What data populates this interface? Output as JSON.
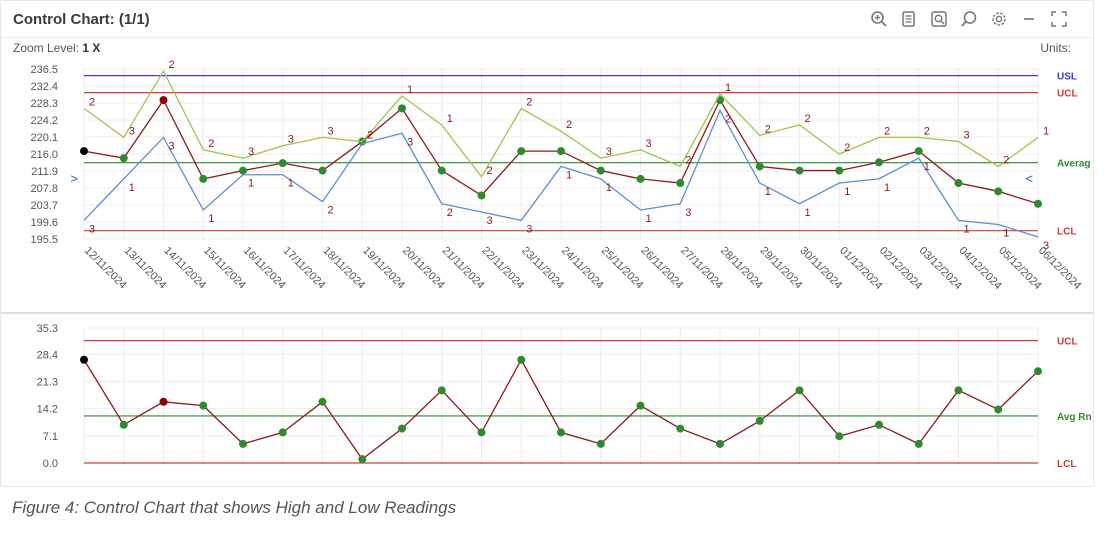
{
  "header": {
    "title": "Control Chart: (1/1)",
    "zoom_label": "Zoom Level:",
    "zoom_value": "1 X",
    "units_label": "Units:",
    "toolbar": [
      "zoom-in-icon",
      "report-icon",
      "zoom-region-icon",
      "search-icon",
      "settings-icon",
      "minimize-icon",
      "expand-icon"
    ]
  },
  "caption": "Figure 4: Control Chart that shows High and Low Readings",
  "chart_data": [
    {
      "type": "line",
      "name": "individuals",
      "categories": [
        "12/11/2024",
        "13/11/2024",
        "14/11/2024",
        "15/11/2024",
        "16/11/2024",
        "17/11/2024",
        "18/11/2024",
        "19/11/2024",
        "20/11/2024",
        "21/11/2024",
        "22/11/2024",
        "23/11/2024",
        "24/11/2024",
        "25/11/2024",
        "26/11/2024",
        "27/11/2024",
        "28/11/2024",
        "29/11/2024",
        "30/11/2024",
        "01/12/2024",
        "02/12/2024",
        "03/12/2024",
        "04/12/2024",
        "05/12/2024",
        "06/12/2024"
      ],
      "yticks": [
        "236.5",
        "232.4",
        "228.3",
        "224.2",
        "220.1",
        "216.0",
        "211.9",
        "207.8",
        "203.7",
        "199.6",
        "195.5"
      ],
      "ylim": [
        195.5,
        236.5
      ],
      "series": [
        {
          "color": "#8b1a1a",
          "values": [
            216.7,
            215.0,
            229.0,
            210.0,
            212.0,
            213.8,
            212.0,
            219.0,
            227.0,
            212.0,
            206.0,
            216.7,
            216.7,
            212.0,
            210.0,
            209.0,
            229.0,
            213.0,
            212.0,
            212.0,
            214.0,
            216.7,
            209.0,
            207.0,
            204.0
          ],
          "marker_colors": [
            "#000000",
            "#2f8a2f",
            "#8b0000",
            "#2f8a2f",
            "#2f8a2f",
            "#2f8a2f",
            "#2f8a2f",
            "#2f8a2f",
            "#2f8a2f",
            "#2f8a2f",
            "#2f8a2f",
            "#2f8a2f",
            "#2f8a2f",
            "#2f8a2f",
            "#2f8a2f",
            "#2f8a2f",
            "#2f8a2f",
            "#2f8a2f",
            "#2f8a2f",
            "#2f8a2f",
            "#2f8a2f",
            "#2f8a2f",
            "#2f8a2f",
            "#2f8a2f",
            "#2f8a2f"
          ]
        },
        {
          "color": "#9fc64a",
          "values": [
            227.0,
            220.0,
            236.0,
            217.0,
            215.0,
            218.0,
            220.0,
            219.0,
            230.0,
            223.0,
            210.5,
            227.0,
            221.5,
            215.0,
            217.0,
            213.0,
            230.5,
            220.5,
            223.0,
            216.0,
            220.0,
            220.0,
            219.0,
            213.0,
            220.0
          ]
        },
        {
          "color": "#5b8fd6",
          "values": [
            200.0,
            210.0,
            220.0,
            202.5,
            211.0,
            211.0,
            204.5,
            218.5,
            221.0,
            204.0,
            202.0,
            200.0,
            213.0,
            210.0,
            202.5,
            204.0,
            226.5,
            209.0,
            204.0,
            209.0,
            210.0,
            215.0,
            200.0,
            199.0,
            196.0
          ]
        }
      ],
      "point_labels": [
        {
          "i": 0,
          "top": "2",
          "bottom": "3"
        },
        {
          "i": 1,
          "top": "3",
          "bottom": "1"
        },
        {
          "i": 2,
          "top": "2",
          "bottom": "3"
        },
        {
          "i": 3,
          "top": "2",
          "bottom": "1"
        },
        {
          "i": 4,
          "top": "3",
          "bottom": "1"
        },
        {
          "i": 5,
          "top": "3",
          "bottom": "1"
        },
        {
          "i": 6,
          "top": "3",
          "bottom": "2"
        },
        {
          "i": 7,
          "top": "2",
          "bottom": ""
        },
        {
          "i": 8,
          "top": "1",
          "bottom": "3"
        },
        {
          "i": 9,
          "top": "1",
          "bottom": "2"
        },
        {
          "i": 10,
          "top": "2",
          "bottom": "3"
        },
        {
          "i": 11,
          "top": "2",
          "bottom": "3"
        },
        {
          "i": 12,
          "top": "2",
          "bottom": "1"
        },
        {
          "i": 13,
          "top": "3",
          "bottom": "1"
        },
        {
          "i": 14,
          "top": "3",
          "bottom": "1"
        },
        {
          "i": 15,
          "top": "2",
          "bottom": "3"
        },
        {
          "i": 16,
          "top": "1",
          "bottom": "2"
        },
        {
          "i": 17,
          "top": "2",
          "bottom": "1"
        },
        {
          "i": 18,
          "top": "2",
          "bottom": "1"
        },
        {
          "i": 19,
          "top": "2",
          "bottom": "1"
        },
        {
          "i": 20,
          "top": "2",
          "bottom": "1"
        },
        {
          "i": 21,
          "top": "2",
          "bottom": "1"
        },
        {
          "i": 22,
          "top": "3",
          "bottom": "1"
        },
        {
          "i": 23,
          "top": "2",
          "bottom": "1"
        },
        {
          "i": 24,
          "top": "1",
          "bottom": "3"
        }
      ],
      "reference_lines": [
        {
          "label": "USL",
          "value": 234.9,
          "color": "#3b3bdb"
        },
        {
          "label": "UCL",
          "value": 230.8,
          "color": "#d33b3b"
        },
        {
          "label": "Averag",
          "value": 213.9,
          "color": "#2f8a2f"
        },
        {
          "label": "LCL",
          "value": 197.5,
          "color": "#d33b3b"
        }
      ],
      "edge_markers": {
        "left": ">",
        "right": "<",
        "value": 210.0,
        "color": "#2d5fb0"
      }
    },
    {
      "type": "line",
      "name": "moving range",
      "categories_ref": "same as individuals",
      "yticks": [
        "35.3",
        "28.4",
        "21.3",
        "14.2",
        "7.1",
        "0.0"
      ],
      "ylim": [
        0,
        35.3
      ],
      "series": [
        {
          "color": "#8b1a1a",
          "values": [
            27.0,
            10.0,
            16.0,
            15.0,
            5.0,
            8.0,
            16.0,
            1.0,
            9.0,
            19.0,
            8.0,
            27.0,
            8.0,
            5.0,
            15.0,
            9.0,
            5.0,
            11.0,
            19.0,
            7.0,
            10.0,
            5.0,
            19.0,
            14.0,
            24.0
          ],
          "marker_colors": [
            "#000000",
            "#2f8a2f",
            "#8b0000",
            "#2f8a2f",
            "#2f8a2f",
            "#2f8a2f",
            "#2f8a2f",
            "#2f8a2f",
            "#2f8a2f",
            "#2f8a2f",
            "#2f8a2f",
            "#2f8a2f",
            "#2f8a2f",
            "#2f8a2f",
            "#2f8a2f",
            "#2f8a2f",
            "#2f8a2f",
            "#2f8a2f",
            "#2f8a2f",
            "#2f8a2f",
            "#2f8a2f",
            "#2f8a2f",
            "#2f8a2f",
            "#2f8a2f",
            "#2f8a2f"
          ]
        }
      ],
      "reference_lines": [
        {
          "label": "UCL",
          "value": 32.0,
          "color": "#d33b3b"
        },
        {
          "label": "Avg Rn",
          "value": 12.3,
          "color": "#2f8a2f"
        },
        {
          "label": "LCL",
          "value": 0.0,
          "color": "#d33b3b"
        }
      ]
    }
  ]
}
